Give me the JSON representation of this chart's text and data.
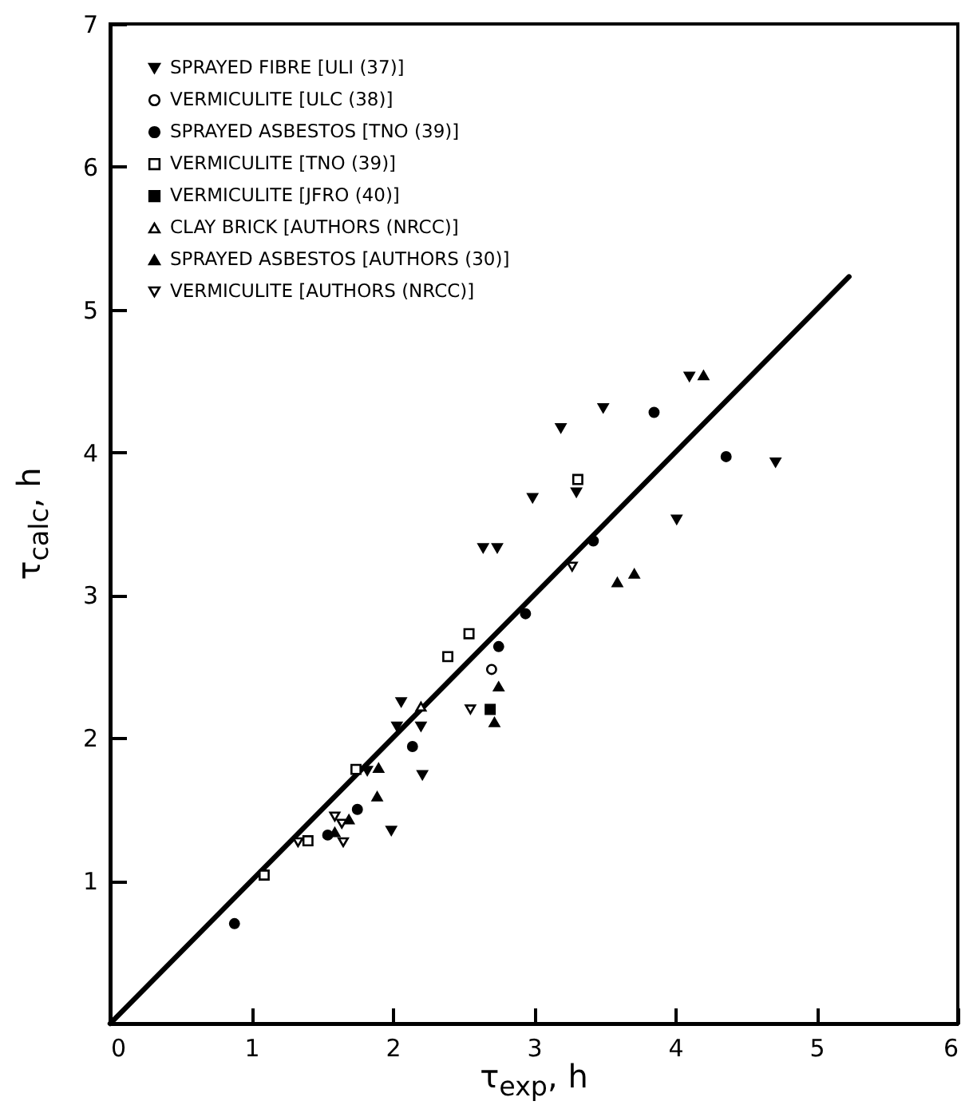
{
  "chart_data": {
    "type": "scatter",
    "xlabel": "τ$_{exp}$, h",
    "ylabel": "τ$_{calc}$, h",
    "xlim": [
      0,
      6
    ],
    "xticks": [
      0,
      1,
      2,
      3,
      4,
      5,
      6
    ],
    "ylim": [
      0,
      7
    ],
    "yticks": [
      {
        "value": 0,
        "label": null
      },
      1,
      2,
      3,
      4,
      5,
      6,
      7
    ],
    "grid": false,
    "legend": "top left",
    "series": [
      {
        "name": "SPRAYED FIBRE [ULI (37)]",
        "color": "#000000",
        "marker": "triangle-down",
        "x": [
          4.1,
          3.49,
          3.19,
          4.71,
          3.3,
          2.99,
          4.01,
          2.64,
          2.74,
          2.06,
          2.03,
          2.2,
          2.21,
          1.82,
          1.99
        ],
        "values": [
          4.53,
          4.31,
          4.17,
          3.93,
          3.72,
          3.68,
          3.53,
          3.33,
          3.33,
          2.25,
          2.08,
          2.08,
          1.74,
          1.77,
          1.35
        ]
      },
      {
        "name": "VERMICULITE [ULC (38)]",
        "color": "#000000",
        "marker": "circle-open",
        "x": [
          2.7
        ],
        "values": [
          2.48
        ]
      },
      {
        "name": "SPRAYED ASBESTOS [TNO (39)]",
        "color": "#000000",
        "marker": "circle",
        "x": [
          3.85,
          4.36,
          3.42,
          2.94,
          2.75,
          2.14,
          1.75,
          1.54,
          0.88
        ],
        "values": [
          4.28,
          3.97,
          3.38,
          2.87,
          2.64,
          1.94,
          1.5,
          1.32,
          0.7
        ]
      },
      {
        "name": "VERMICULITE [TNO (39)]",
        "color": "#000000",
        "marker": "square-open",
        "x": [
          3.31,
          2.54,
          2.39,
          1.74,
          1.4,
          1.09
        ],
        "values": [
          3.81,
          2.73,
          2.57,
          1.78,
          1.28,
          1.04
        ]
      },
      {
        "name": "VERMICULITE [JFRO (40)]",
        "color": "#000000",
        "marker": "square",
        "x": [
          2.69
        ],
        "values": [
          2.2
        ]
      },
      {
        "name": "CLAY BRICK [AUTHORS (NRCC)]",
        "color": "#000000",
        "marker": "triangle-open",
        "x": [
          2.2
        ],
        "values": [
          2.22
        ]
      },
      {
        "name": "SPRAYED ASBESTOS [AUTHORS (30)]",
        "color": "#000000",
        "marker": "triangle",
        "x": [
          4.2,
          3.59,
          3.71,
          2.75,
          2.72,
          1.9,
          1.89,
          1.69,
          1.59
        ],
        "values": [
          4.54,
          3.09,
          3.15,
          2.36,
          2.11,
          1.79,
          1.59,
          1.43,
          1.34
        ]
      },
      {
        "name": "VERMICULITE [AUTHORS (NRCC)]",
        "color": "#000000",
        "marker": "triangle-down-open",
        "x": [
          3.27,
          2.55,
          1.59,
          1.64,
          1.65,
          1.33
        ],
        "values": [
          3.2,
          2.2,
          1.45,
          1.4,
          1.27,
          1.27
        ]
      },
      {
        "type": "line",
        "color": "#000000",
        "line_style": "solid",
        "x": [
          0,
          5.23
        ],
        "values": [
          0,
          5.23
        ]
      }
    ]
  }
}
